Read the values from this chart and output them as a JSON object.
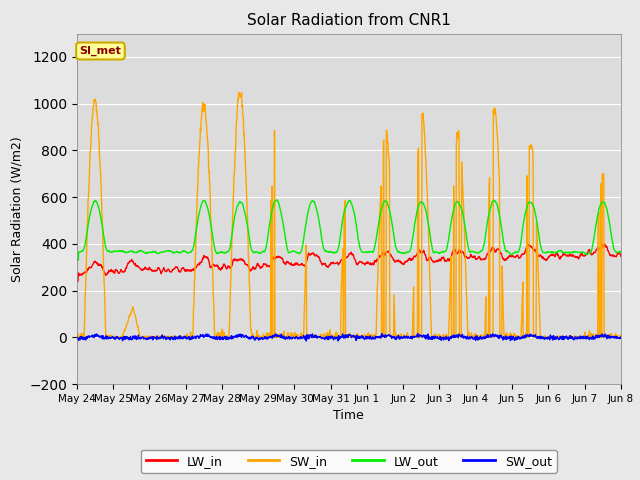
{
  "title": "Solar Radiation from CNR1",
  "xlabel": "Time",
  "ylabel": "Solar Radiation (W/m2)",
  "ylim": [
    -200,
    1300
  ],
  "yticks": [
    -200,
    0,
    200,
    400,
    600,
    800,
    1000,
    1200
  ],
  "fig_bg_color": "#e8e8e8",
  "plot_bg_color": "#e8e8e8",
  "inner_bg_color": "#dcdcdc",
  "legend_label": "SI_met",
  "legend_bg": "#ffff99",
  "legend_border": "#ccaa00",
  "line_colors": {
    "LW_in": "#ff0000",
    "SW_in": "#ffa500",
    "LW_out": "#00ee00",
    "SW_out": "#0000ff"
  },
  "x_tick_labels": [
    "May 24",
    "May 25",
    "May 26",
    "May 27",
    "May 28",
    "May 29",
    "May 30",
    "May 31",
    "Jun 1",
    "Jun 2",
    "Jun 3",
    "Jun 4",
    "Jun 5",
    "Jun 6",
    "Jun 7",
    "Jun 8"
  ],
  "n_days": 16
}
